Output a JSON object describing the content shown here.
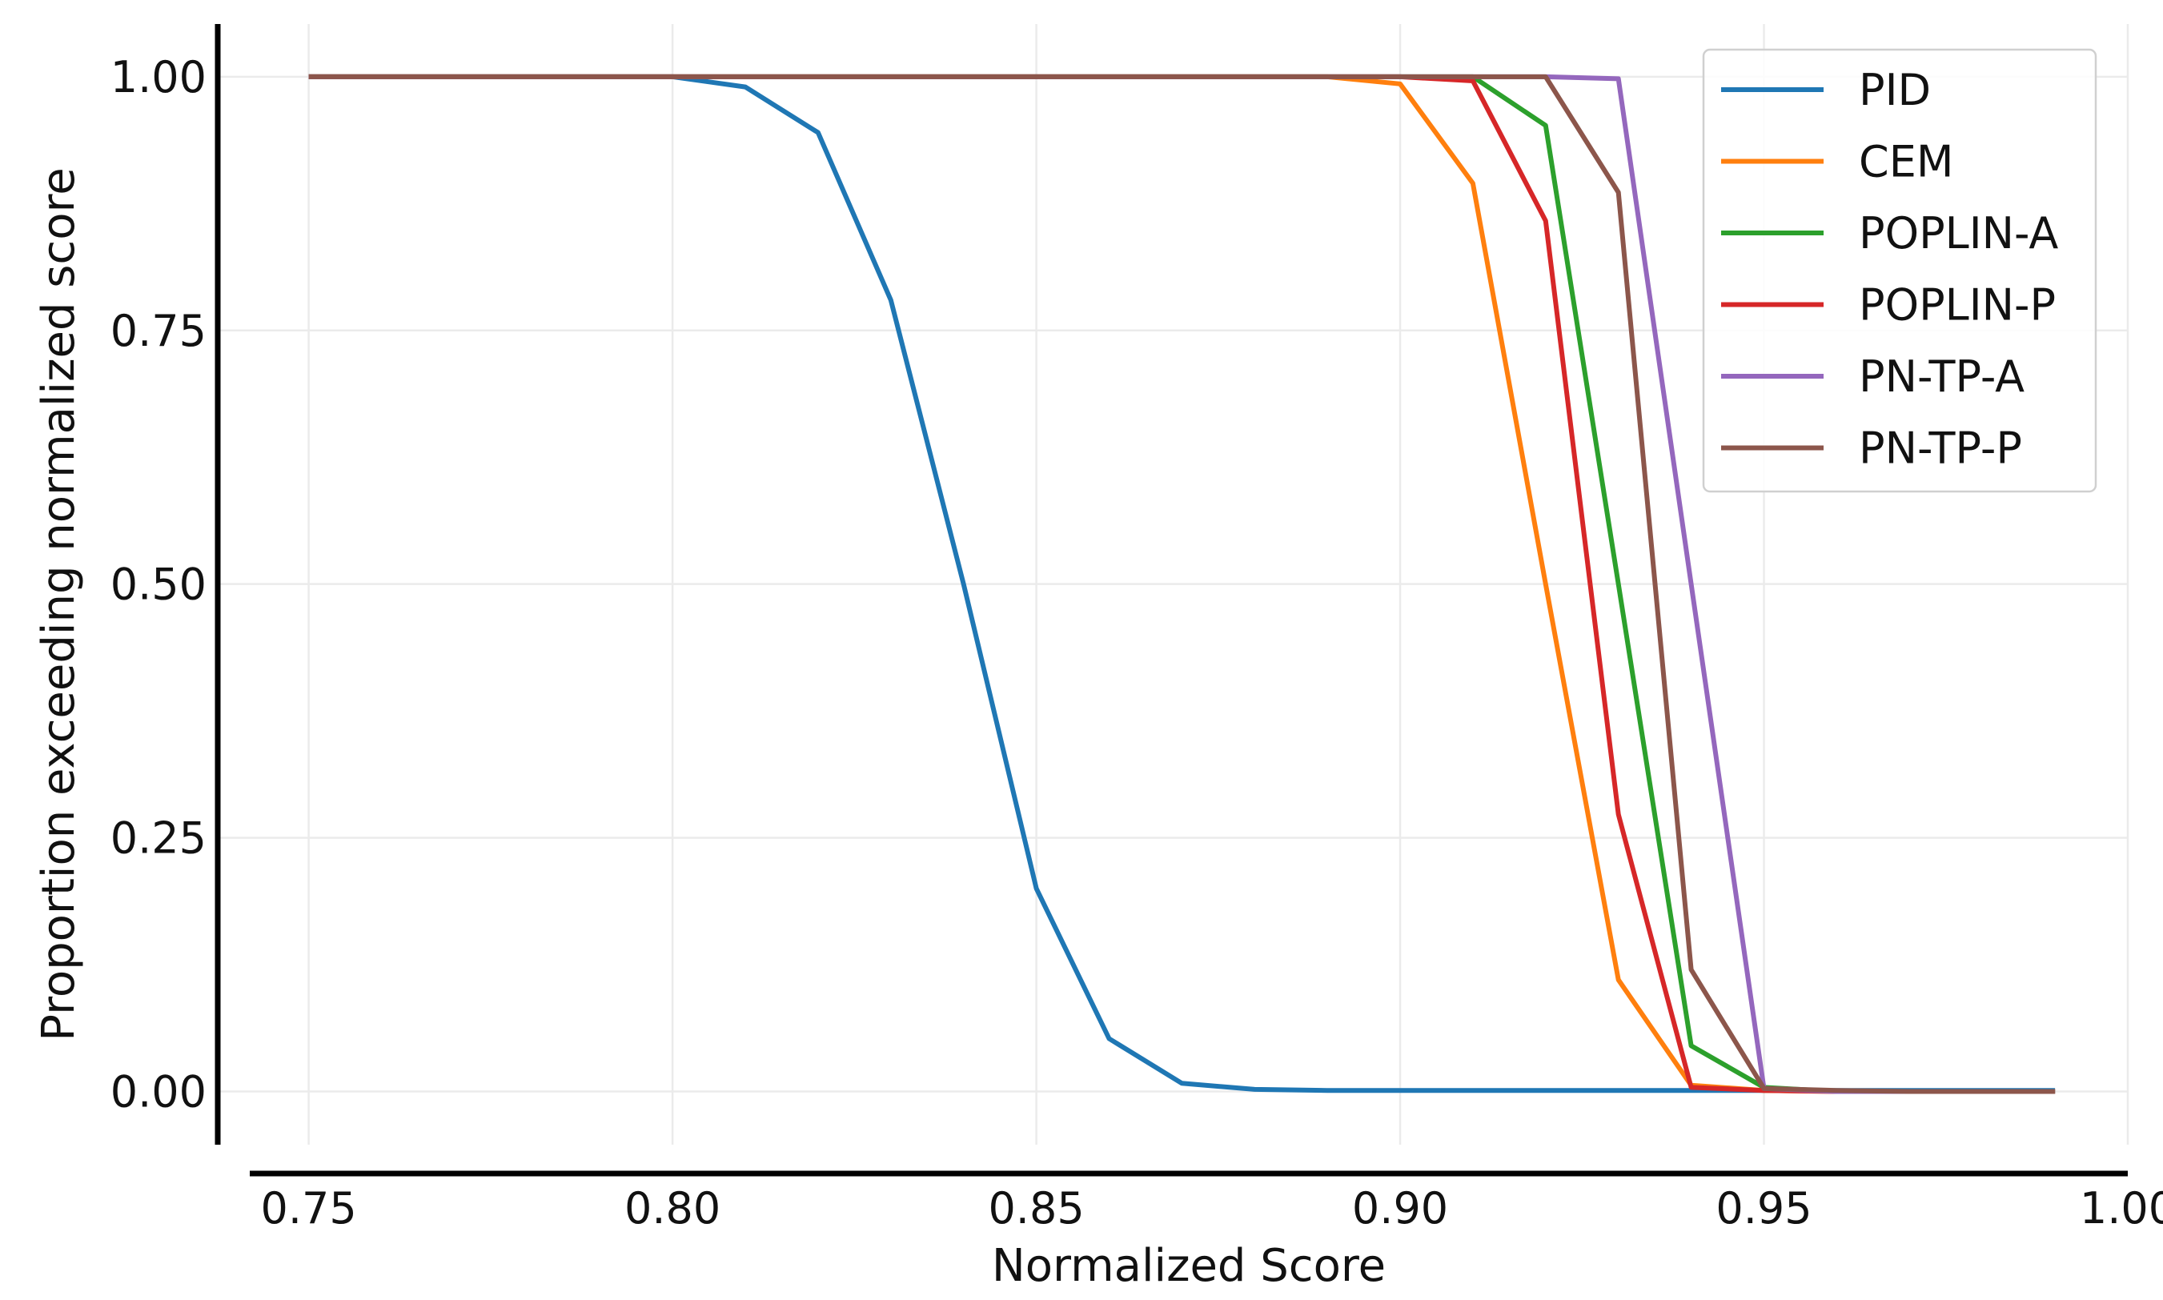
{
  "chart_data": {
    "type": "line",
    "xlabel": "Normalized Score",
    "ylabel": "Proportion exceeding normalized score",
    "xlim": [
      0.7375,
      1.0
    ],
    "ylim": [
      -0.0525,
      1.052
    ],
    "xticks": [
      0.75,
      0.8,
      0.85,
      0.9,
      0.95,
      1.0
    ],
    "xtick_labels": [
      "0.75",
      "0.80",
      "0.85",
      "0.90",
      "0.95",
      "1.00"
    ],
    "yticks": [
      0.0,
      0.25,
      0.5,
      0.75,
      1.0
    ],
    "ytick_labels": [
      "0.00",
      "0.25",
      "0.50",
      "0.75",
      "1.00"
    ],
    "grid": true,
    "legend_position": "top-right",
    "x": [
      0.75,
      0.76,
      0.77,
      0.78,
      0.79,
      0.8,
      0.81,
      0.82,
      0.83,
      0.84,
      0.85,
      0.86,
      0.87,
      0.88,
      0.89,
      0.9,
      0.91,
      0.92,
      0.93,
      0.94,
      0.95,
      0.96,
      0.97,
      0.98,
      0.99
    ],
    "series": [
      {
        "name": "PID",
        "color": "#1f77b4",
        "values": [
          1.0,
          1.0,
          1.0,
          1.0,
          1.0,
          1.0,
          0.99,
          0.945,
          0.78,
          0.5,
          0.2,
          0.052,
          0.008,
          0.002,
          0.001,
          0.001,
          0.001,
          0.001,
          0.001,
          0.001,
          0.001,
          0.001,
          0.001,
          0.001,
          0.001
        ]
      },
      {
        "name": "CEM",
        "color": "#ff7f0e",
        "values": [
          1.0,
          1.0,
          1.0,
          1.0,
          1.0,
          1.0,
          1.0,
          1.0,
          1.0,
          1.0,
          1.0,
          1.0,
          1.0,
          1.0,
          1.0,
          0.993,
          0.895,
          0.5,
          0.11,
          0.006,
          0.001,
          0.0,
          0.0,
          0.0,
          0.0
        ]
      },
      {
        "name": "POPLIN-A",
        "color": "#2ca02c",
        "values": [
          1.0,
          1.0,
          1.0,
          1.0,
          1.0,
          1.0,
          1.0,
          1.0,
          1.0,
          1.0,
          1.0,
          1.0,
          1.0,
          1.0,
          1.0,
          1.0,
          1.0,
          0.952,
          0.5,
          0.045,
          0.004,
          0.0,
          0.0,
          0.0,
          0.0
        ]
      },
      {
        "name": "POPLIN-P",
        "color": "#d62728",
        "values": [
          1.0,
          1.0,
          1.0,
          1.0,
          1.0,
          1.0,
          1.0,
          1.0,
          1.0,
          1.0,
          1.0,
          1.0,
          1.0,
          1.0,
          1.0,
          1.0,
          0.996,
          0.858,
          0.273,
          0.004,
          0.001,
          0.0,
          0.0,
          0.0,
          0.0
        ]
      },
      {
        "name": "PN-TP-A",
        "color": "#9467bd",
        "values": [
          1.0,
          1.0,
          1.0,
          1.0,
          1.0,
          1.0,
          1.0,
          1.0,
          1.0,
          1.0,
          1.0,
          1.0,
          1.0,
          1.0,
          1.0,
          1.0,
          1.0,
          1.0,
          0.998,
          0.5,
          0.003,
          0.0,
          0.0,
          0.0,
          0.0
        ]
      },
      {
        "name": "PN-TP-P",
        "color": "#8c564b",
        "values": [
          1.0,
          1.0,
          1.0,
          1.0,
          1.0,
          1.0,
          1.0,
          1.0,
          1.0,
          1.0,
          1.0,
          1.0,
          1.0,
          1.0,
          1.0,
          1.0,
          1.0,
          1.0,
          0.886,
          0.12,
          0.003,
          0.001,
          0.0,
          0.0,
          0.0
        ]
      }
    ]
  }
}
